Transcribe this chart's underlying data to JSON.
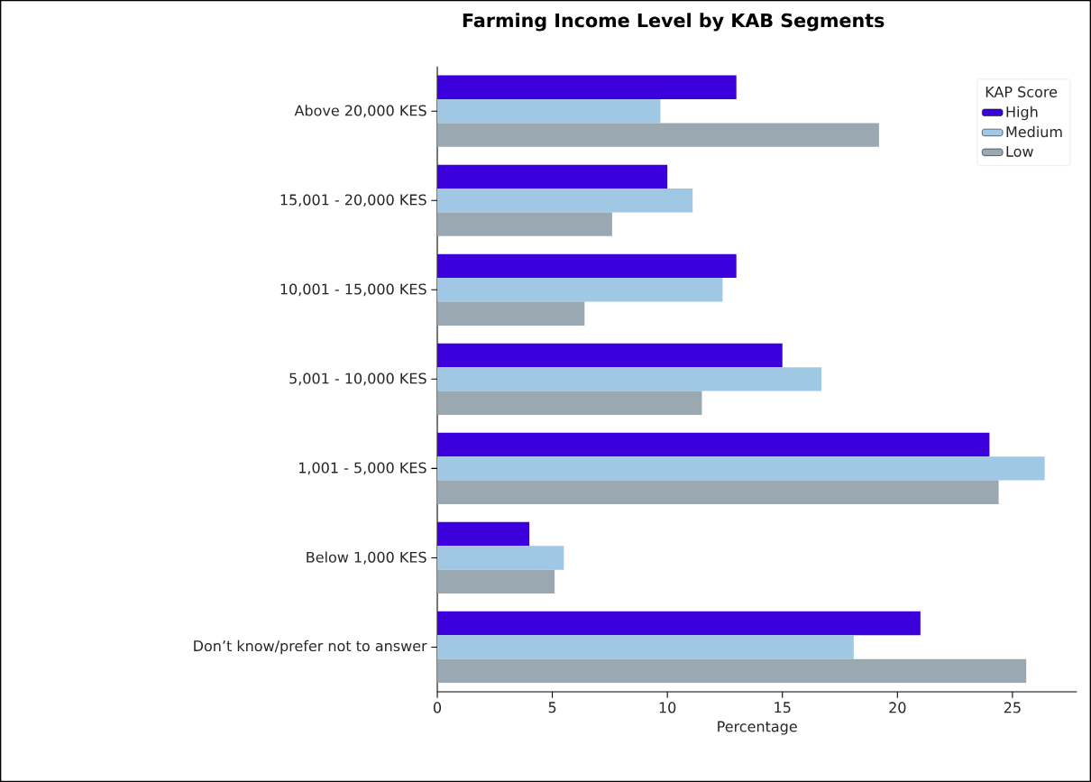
{
  "chart_data": {
    "type": "bar",
    "orientation": "horizontal",
    "title": "Farming Income Level by KAB Segments",
    "xlabel": "Percentage",
    "categories": [
      "Above 20,000 KES",
      "15,001 - 20,000 KES",
      "10,001 - 15,000 KES",
      "5,001 - 10,000 KES",
      "1,001 - 5,000 KES",
      "Below 1,000 KES",
      "Don’t know/prefer not to answer"
    ],
    "series": [
      {
        "name": "High",
        "color": "#3c00dc",
        "values": [
          13.0,
          10.0,
          13.0,
          15.0,
          24.0,
          4.0,
          21.0
        ]
      },
      {
        "name": "Medium",
        "color": "#a0c8e4",
        "values": [
          9.7,
          11.1,
          12.4,
          16.7,
          26.4,
          5.5,
          18.1
        ]
      },
      {
        "name": "Low",
        "color": "#9aa8b2",
        "values": [
          19.2,
          7.6,
          6.4,
          11.5,
          24.4,
          5.1,
          25.6
        ]
      }
    ],
    "legend_title": "KAP Score",
    "legend": "top right",
    "xlim": [
      0,
      27.8
    ],
    "xticks": [
      0,
      5,
      10,
      15,
      20,
      25
    ]
  }
}
